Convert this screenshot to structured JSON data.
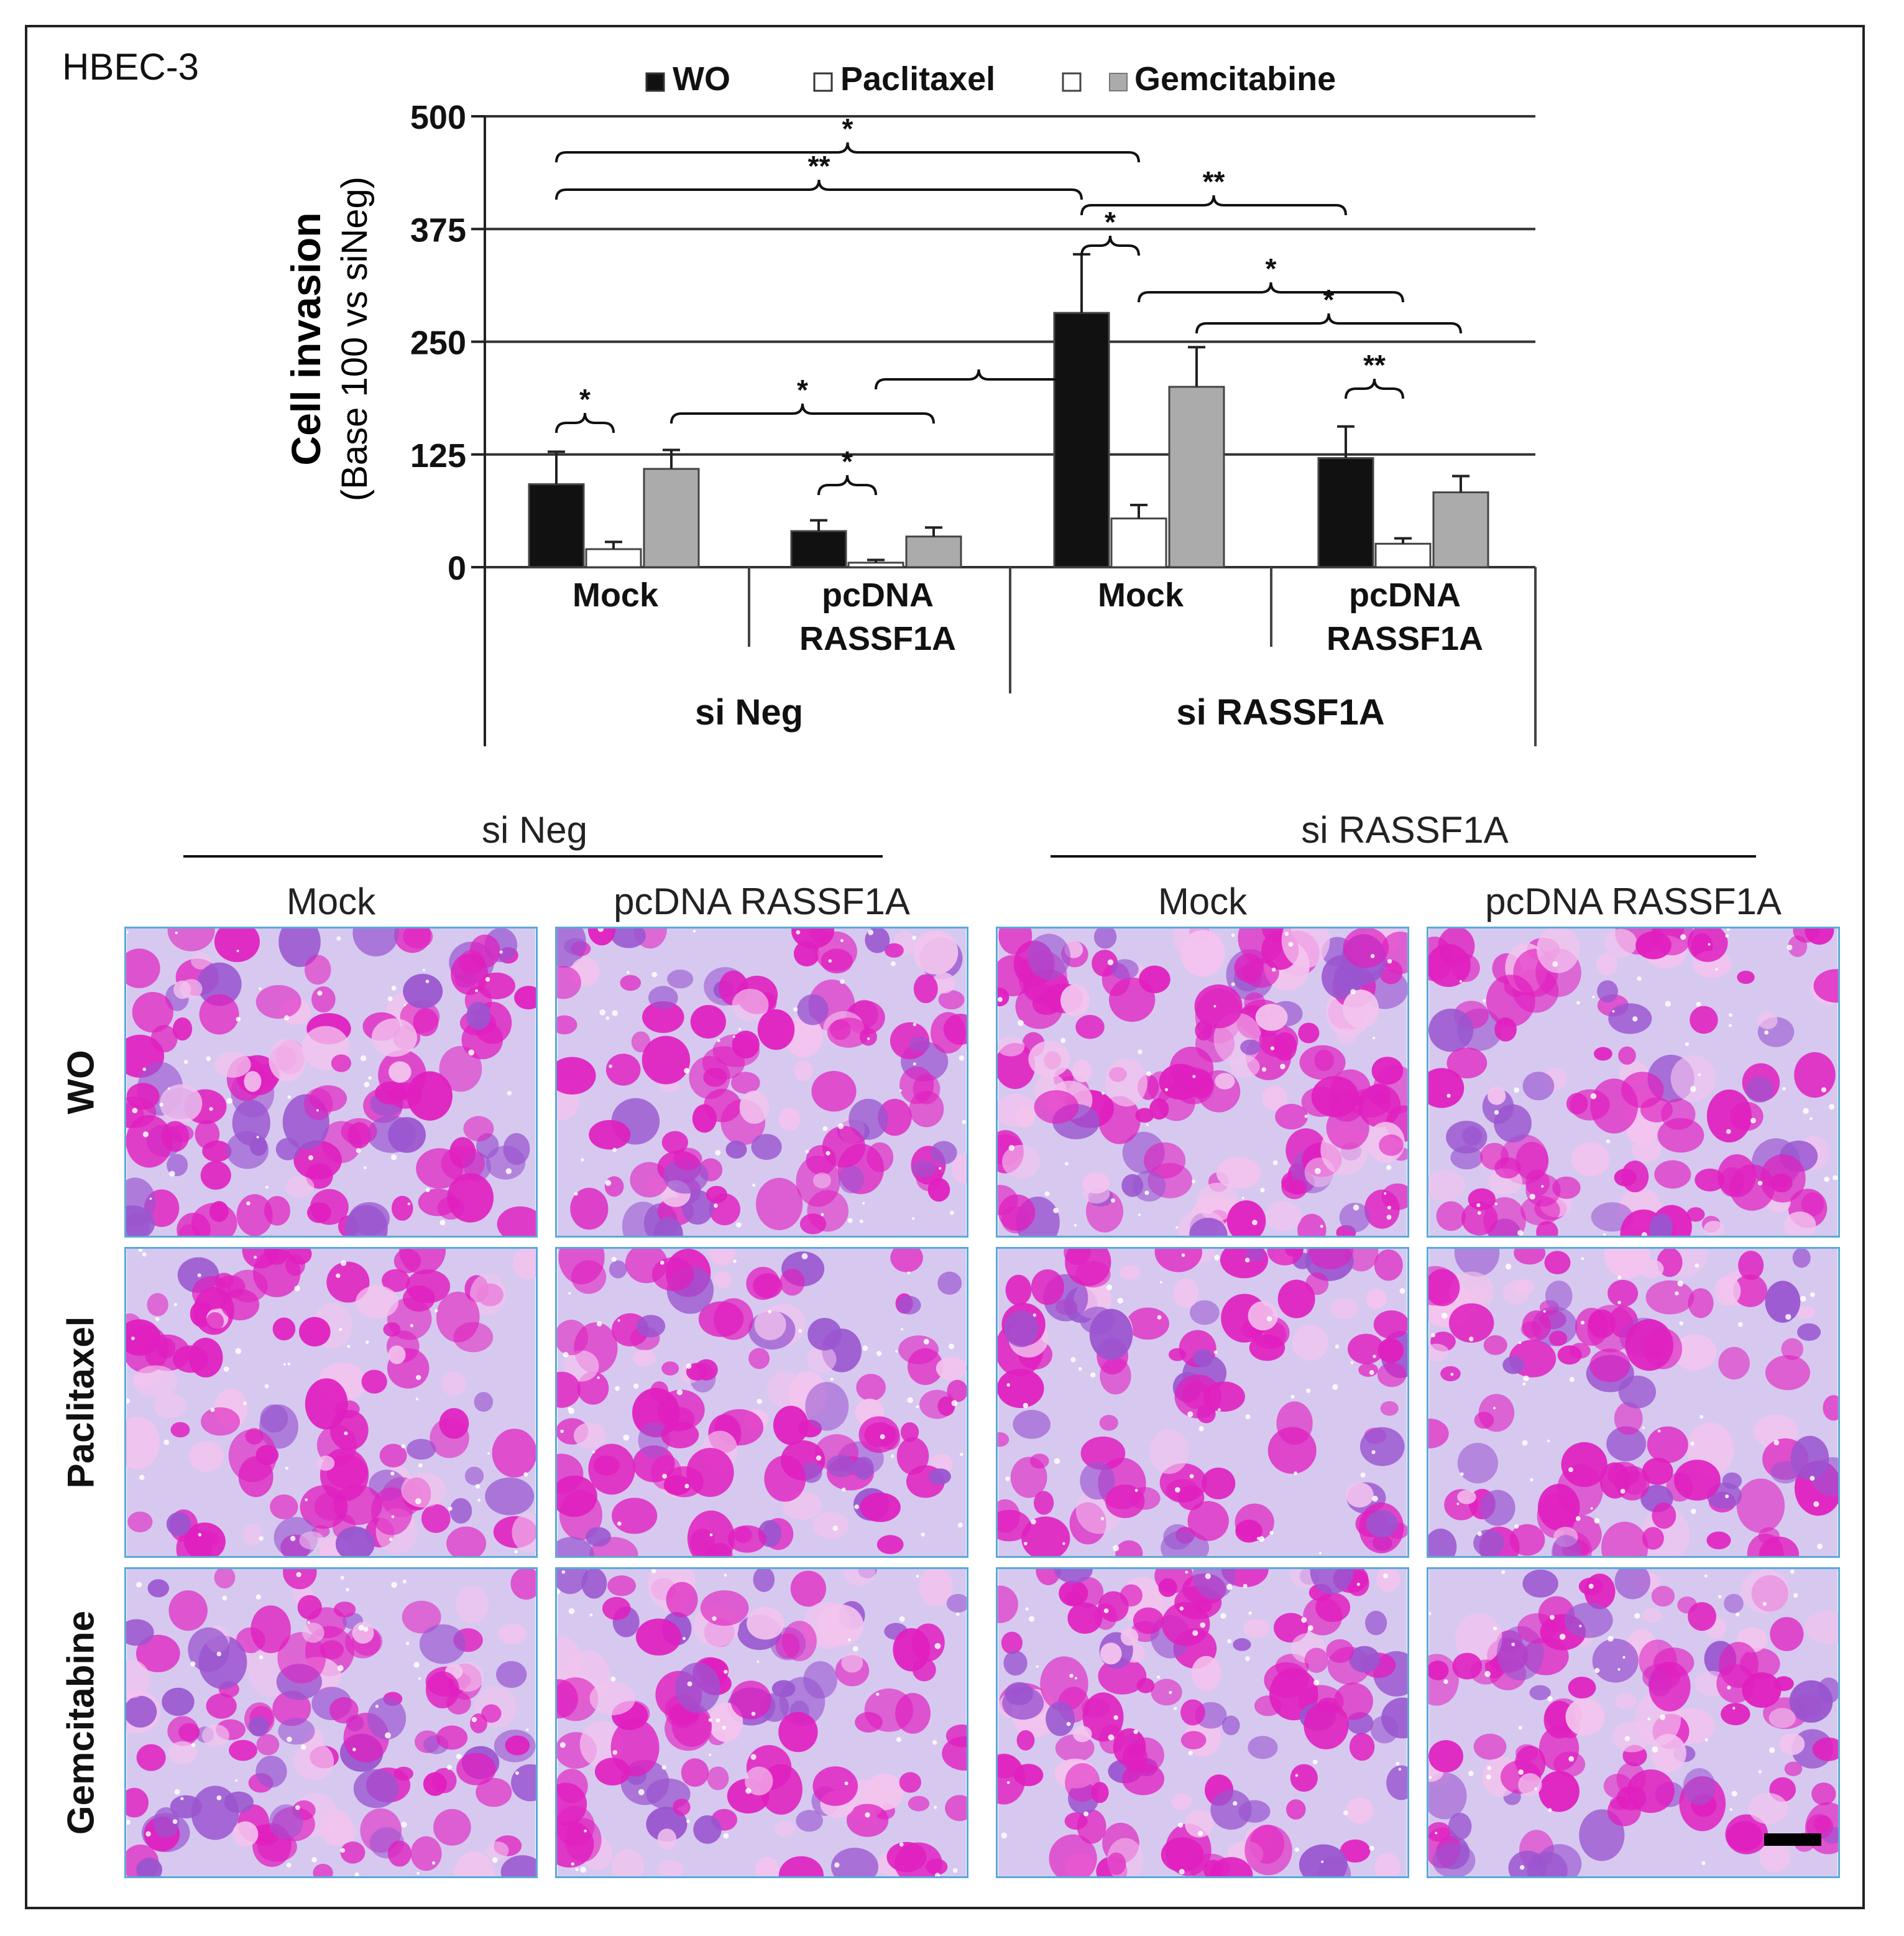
{
  "cell_line_label": "HBEC-3",
  "chart_data": {
    "type": "bar",
    "title": "",
    "ylabel_line1": "Cell invasion",
    "ylabel_line2": "(Base 100 vs siNeg)",
    "ylim": [
      0,
      500
    ],
    "yticks": [
      "0",
      "125",
      "250",
      "375",
      "500"
    ],
    "grid": true,
    "legend_position": "top",
    "legend": [
      {
        "name": "WO",
        "color": "#111111"
      },
      {
        "name": "Paclitaxel",
        "color": "#ffffff"
      },
      {
        "name": "Gemcitabine",
        "color": "#ababab"
      }
    ],
    "categories": [
      "Mock",
      "pcDNA RASSF1A",
      "Mock",
      "pcDNA RASSF1A"
    ],
    "category_lines": [
      [
        "Mock"
      ],
      [
        "pcDNA",
        "RASSF1A"
      ],
      [
        "Mock"
      ],
      [
        "pcDNA",
        "RASSF1A"
      ]
    ],
    "groups": [
      {
        "label": "si Neg",
        "categories": [
          0,
          1
        ]
      },
      {
        "label": "si RASSF1A",
        "categories": [
          2,
          3
        ]
      }
    ],
    "series": [
      {
        "name": "WO",
        "color": "#111111",
        "values": [
          92,
          40,
          282,
          121
        ],
        "errors": [
          36,
          12,
          65,
          35
        ]
      },
      {
        "name": "Paclitaxel",
        "color": "#ffffff",
        "values": [
          20,
          5,
          54,
          26
        ],
        "errors": [
          8,
          3,
          15,
          6
        ]
      },
      {
        "name": "Gemcitabine",
        "color": "#ababab",
        "values": [
          109,
          34,
          200,
          83
        ],
        "errors": [
          21,
          10,
          44,
          18
        ]
      }
    ],
    "significance": [
      {
        "label": "*",
        "from": [
          0,
          0
        ],
        "to": [
          0,
          1
        ]
      },
      {
        "label": "*",
        "from": [
          1,
          0
        ],
        "to": [
          1,
          1
        ]
      },
      {
        "label": "*",
        "from": [
          0,
          2
        ],
        "to": [
          1,
          2
        ]
      },
      {
        "label": "*",
        "from": [
          2,
          0
        ],
        "to": [
          2,
          1
        ]
      },
      {
        "label": "**",
        "from": [
          3,
          0
        ],
        "to": [
          3,
          1
        ]
      },
      {
        "label": "*",
        "from": [
          2,
          1
        ],
        "to": [
          3,
          1
        ]
      },
      {
        "label": "*",
        "from": [
          2,
          2
        ],
        "to": [
          3,
          2
        ]
      },
      {
        "label": "**",
        "from": [
          2,
          0
        ],
        "to": [
          3,
          0
        ]
      },
      {
        "label": "**",
        "from": [
          0,
          0
        ],
        "to": [
          2,
          0
        ]
      },
      {
        "label": "*",
        "from": [
          0,
          0
        ],
        "to": [
          2,
          1
        ]
      },
      {
        "label": "",
        "from": [
          1,
          1
        ],
        "to": [
          2,
          0
        ]
      }
    ]
  },
  "micrographs": {
    "group_headers": [
      "si Neg",
      "si RASSF1A"
    ],
    "column_headers": [
      "Mock",
      "pcDNA RASSF1A",
      "Mock",
      "pcDNA RASSF1A"
    ],
    "row_labels": [
      "WO",
      "Paclitaxel",
      "Gemcitabine"
    ],
    "stain_colors": [
      "#e01fbf",
      "#9a55cf",
      "#f3c4ee"
    ],
    "background_color": "#d7c8f0",
    "density": [
      [
        0.55,
        0.5,
        0.85,
        0.5
      ],
      [
        0.45,
        0.45,
        0.4,
        0.45
      ],
      [
        0.55,
        0.45,
        0.65,
        0.5
      ]
    ],
    "scale_bar": true
  }
}
